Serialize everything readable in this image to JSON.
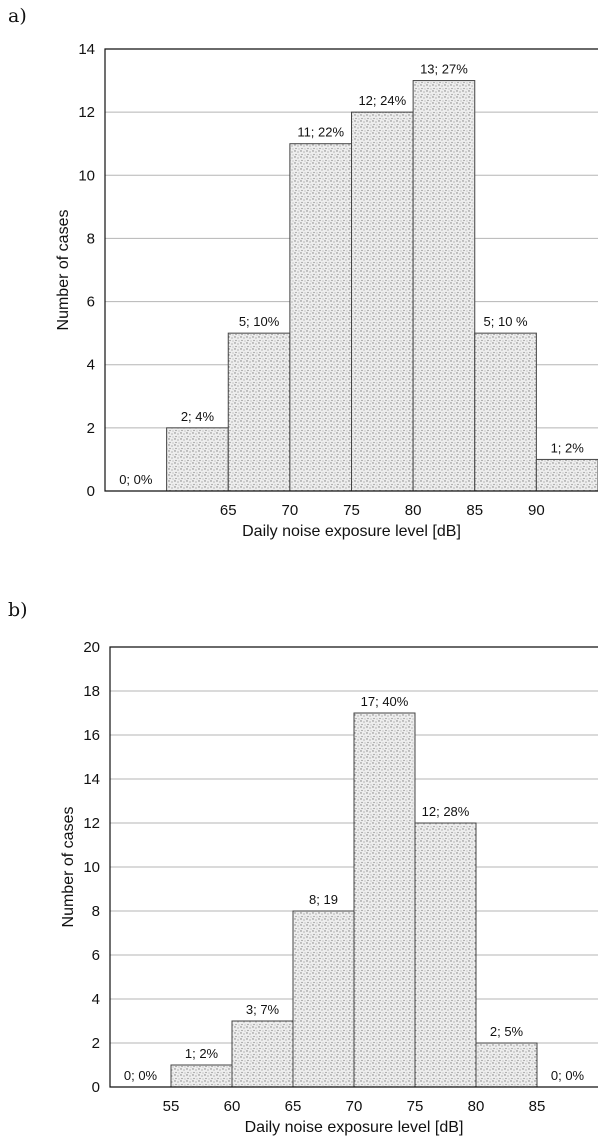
{
  "chart_data": [
    {
      "type": "bar",
      "panel_label": "a)",
      "xlabel": "Daily noise exposure level [dB]",
      "ylabel": "Number of cases",
      "ylim": [
        0,
        14
      ],
      "yticks": [
        "0",
        "2",
        "4",
        "6",
        "8",
        "10",
        "12",
        "14"
      ],
      "xticks": [
        "65",
        "70",
        "75",
        "80",
        "85",
        "90"
      ],
      "grid": true,
      "bins": [
        {
          "values": 0,
          "label": "0; 0%"
        },
        {
          "values": 2,
          "label": "2; 4%"
        },
        {
          "values": 5,
          "label": "5; 10%"
        },
        {
          "values": 11,
          "label": "11; 22%"
        },
        {
          "values": 12,
          "label": "12; 24%"
        },
        {
          "values": 13,
          "label": "13; 27%"
        },
        {
          "values": 5,
          "label": "5; 10 %"
        },
        {
          "values": 1,
          "label": "1; 2%"
        }
      ]
    },
    {
      "type": "bar",
      "panel_label": "b)",
      "xlabel": "Daily noise exposure level [dB]",
      "ylabel": "Number of cases",
      "ylim": [
        0,
        20
      ],
      "yticks": [
        "0",
        "2",
        "4",
        "6",
        "8",
        "10",
        "12",
        "14",
        "16",
        "18",
        "20"
      ],
      "xticks": [
        "55",
        "60",
        "65",
        "70",
        "75",
        "80",
        "85"
      ],
      "grid": true,
      "bins": [
        {
          "values": 0,
          "label": "0; 0%"
        },
        {
          "values": 1,
          "label": "1; 2%"
        },
        {
          "values": 3,
          "label": "3; 7%"
        },
        {
          "values": 8,
          "label": "8; 19"
        },
        {
          "values": 17,
          "label": "17; 40%"
        },
        {
          "values": 12,
          "label": "12; 28%"
        },
        {
          "values": 2,
          "label": "2; 5%"
        },
        {
          "values": 0,
          "label": "0; 0%"
        }
      ]
    }
  ]
}
